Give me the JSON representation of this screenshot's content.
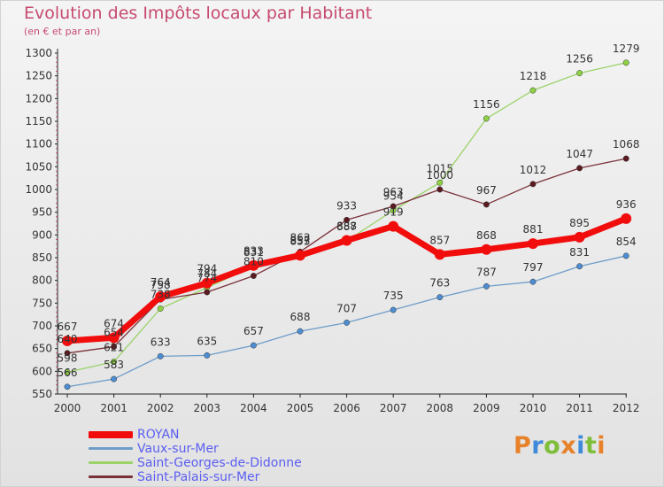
{
  "header": {
    "title": "Evolution des Impôts locaux par Habitant",
    "subtitle": "(en € et par an)"
  },
  "brand": {
    "letters": [
      {
        "ch": "P",
        "color": "#e7822b"
      },
      {
        "ch": "r",
        "color": "#3f8bd9"
      },
      {
        "ch": "o",
        "color": "#7fbe3a"
      },
      {
        "ch": "x",
        "color": "#e7822b"
      },
      {
        "ch": "i",
        "color": "#3f8bd9"
      },
      {
        "ch": "t",
        "color": "#7fbe3a"
      },
      {
        "ch": "i",
        "color": "#e7822b"
      }
    ]
  },
  "chart_data": {
    "type": "line",
    "x": [
      "2000",
      "2001",
      "2002",
      "2003",
      "2004",
      "2005",
      "2006",
      "2007",
      "2008",
      "2009",
      "2010",
      "2011",
      "2012"
    ],
    "yticks": [
      550,
      600,
      650,
      700,
      750,
      800,
      850,
      900,
      950,
      1000,
      1050,
      1100,
      1150,
      1200,
      1250,
      1300
    ],
    "ylim": [
      550,
      1300
    ],
    "grid": false,
    "legend_position": "bottom-left",
    "series": [
      {
        "name": "ROYAN",
        "color": "#f20d0d",
        "marker": "#f20d0d",
        "values": [
          667,
          674,
          764,
          794,
          833,
          855,
          888,
          919,
          857,
          868,
          881,
          895,
          936
        ],
        "labels": [
          "667",
          "674",
          "764",
          "794",
          "833",
          "855",
          "888",
          "919",
          "857",
          "868",
          "881",
          "895",
          "936"
        ]
      },
      {
        "name": "Vaux-sur-Mer",
        "color": "#6f9dca",
        "marker": "#4d8ed2",
        "values": [
          566,
          583,
          633,
          635,
          657,
          688,
          707,
          735,
          763,
          787,
          797,
          831,
          854
        ],
        "labels": [
          "566",
          "583",
          "633",
          "635",
          "657",
          "688",
          "707",
          "735",
          "763",
          "787",
          "797",
          "831",
          "854"
        ]
      },
      {
        "name": "Saint-Georges-de-Didonne",
        "color": "#9bd36a",
        "marker": "#8ed244",
        "values": [
          598,
          621,
          738,
          784,
          831,
          857,
          887,
          954,
          1015,
          1156,
          1218,
          1256,
          1279
        ],
        "labels": [
          "598",
          "621",
          "738",
          "784",
          "831",
          "857",
          "887",
          "954",
          "1015",
          "1156",
          "1218",
          "1256",
          "1279"
        ]
      },
      {
        "name": "Saint-Palais-sur-Mer",
        "color": "#7a3038",
        "marker": "#5a1a20",
        "values": [
          640,
          654,
          758,
          774,
          810,
          863,
          933,
          963,
          1000,
          967,
          1012,
          1047,
          1068
        ],
        "labels": [
          "640",
          "654",
          "758",
          "774",
          "810",
          "863",
          "933",
          "963",
          "1000",
          "967",
          "1012",
          "1047",
          "1068"
        ]
      }
    ]
  }
}
